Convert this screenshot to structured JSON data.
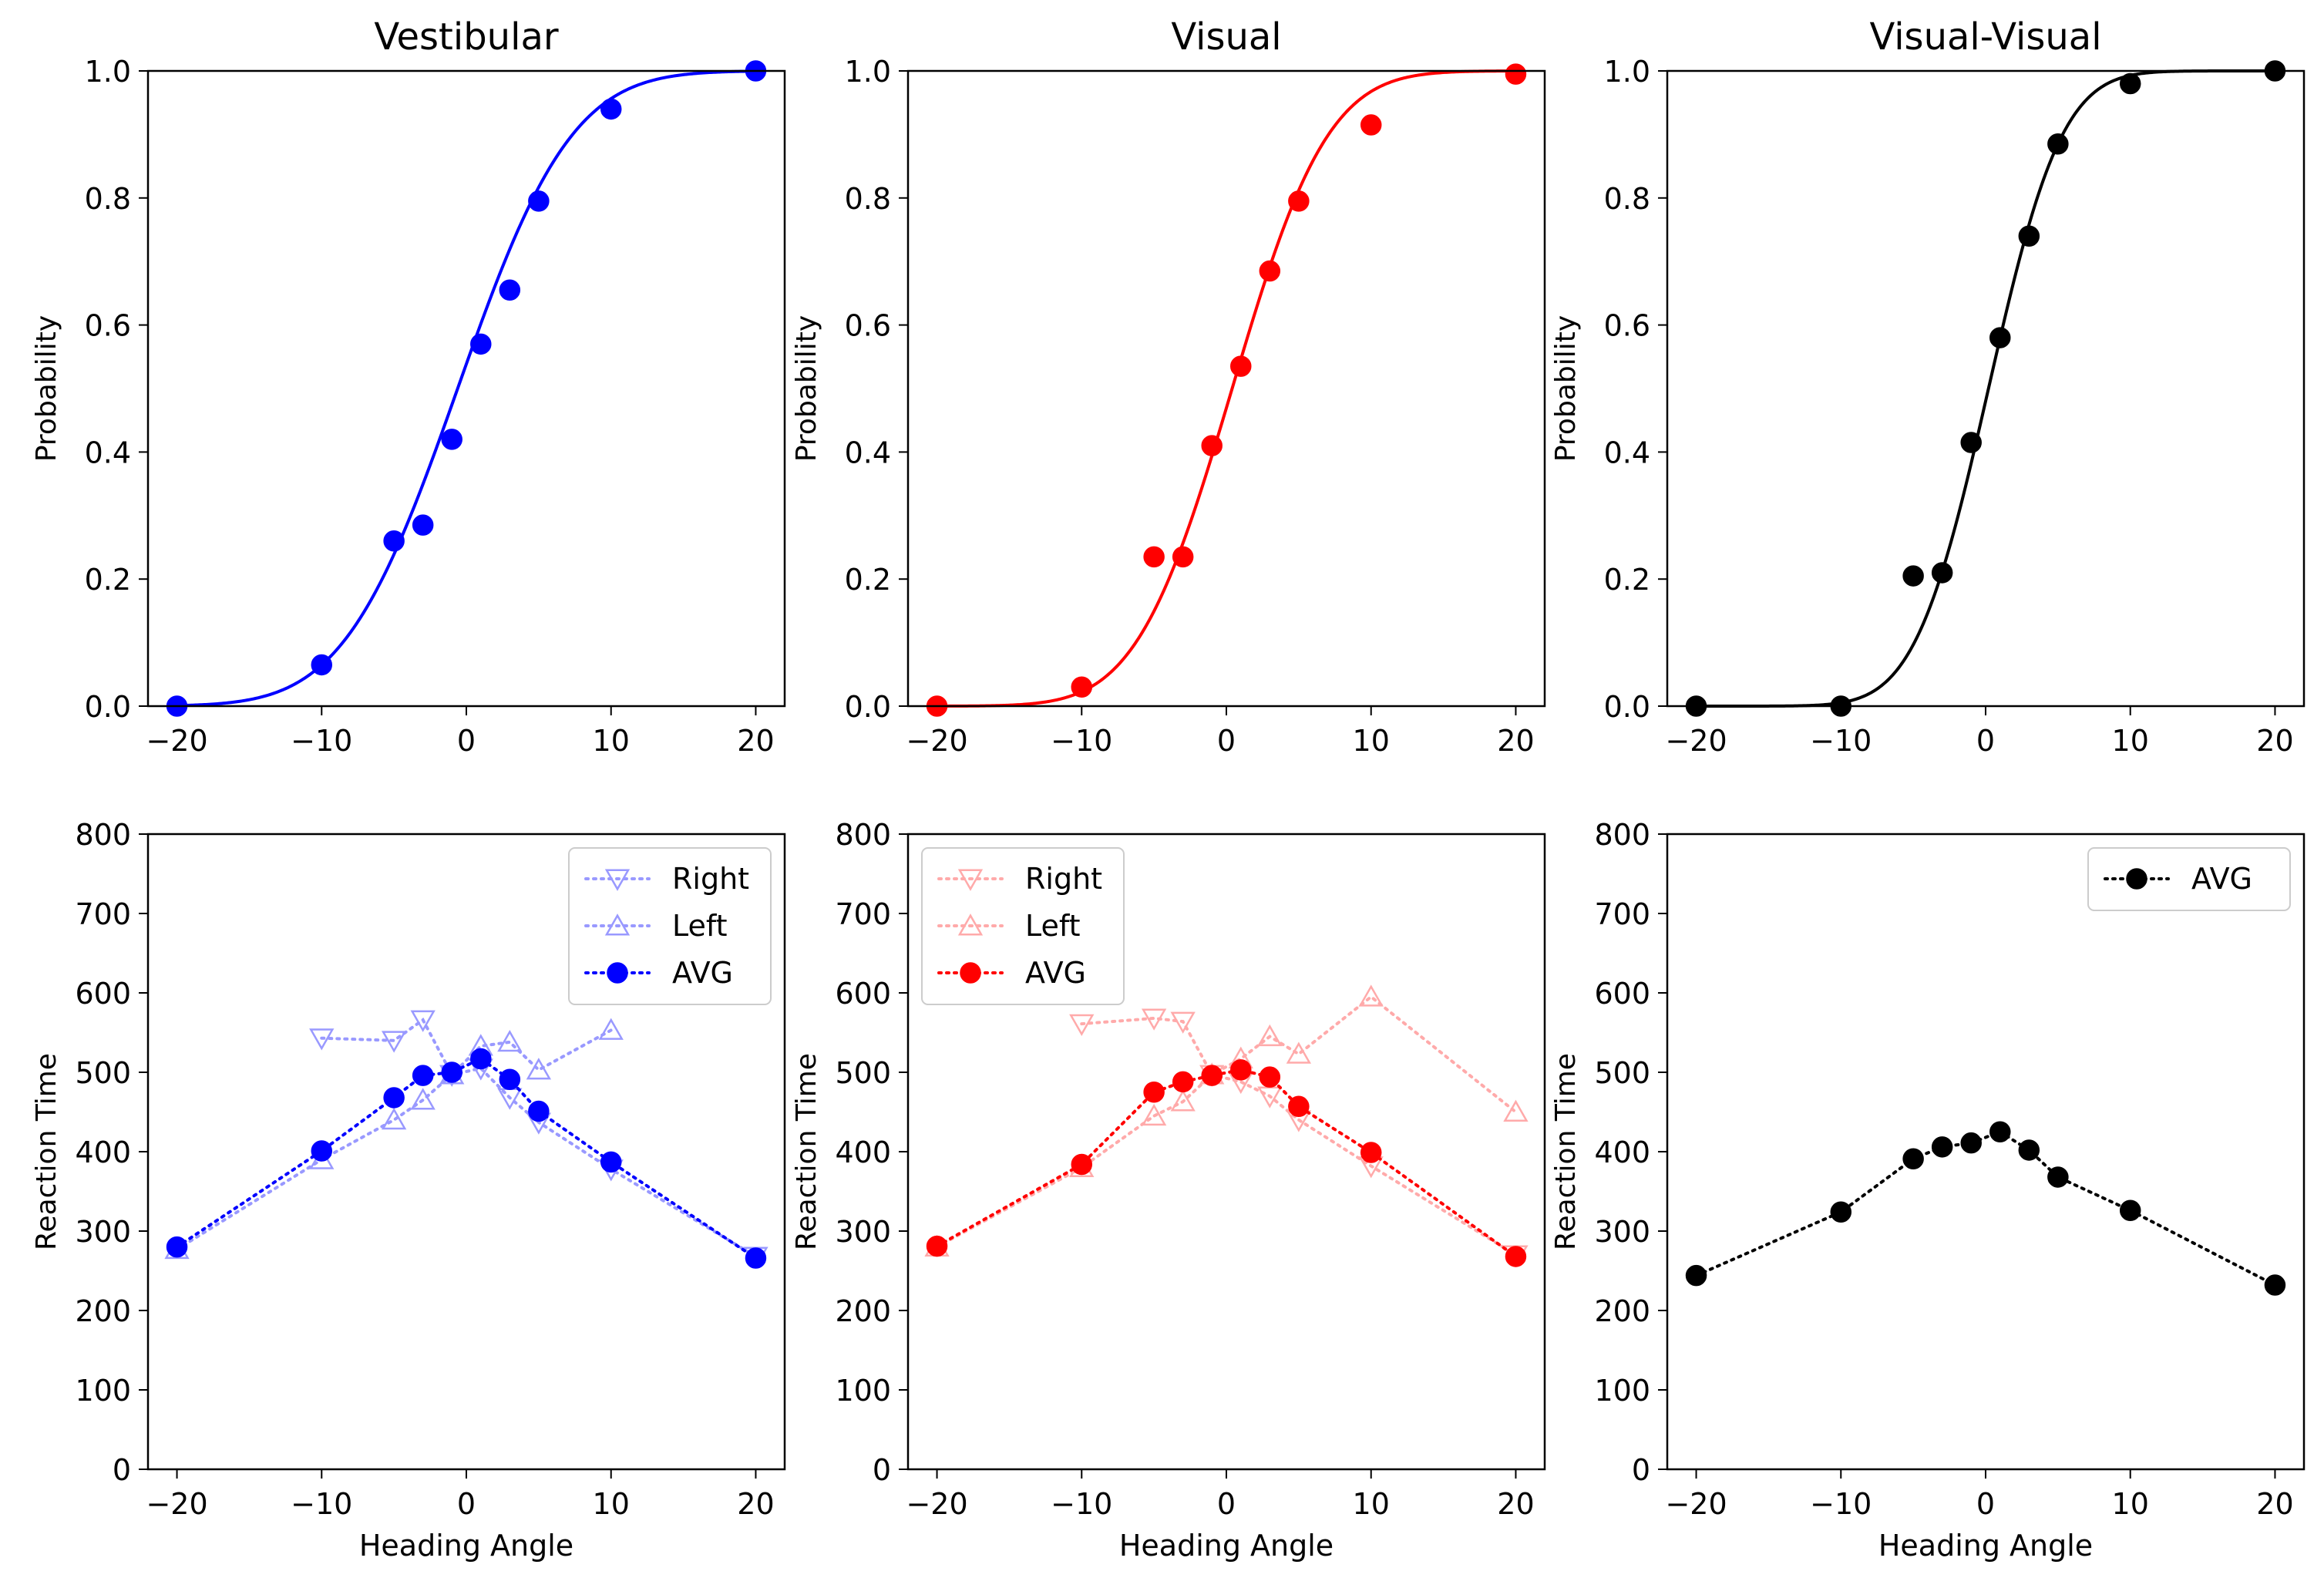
{
  "chart_data": [
    {
      "type": "scatter",
      "title": "Vestibular",
      "xlabel": "",
      "ylabel": "Probability",
      "xlim": [
        -22,
        22
      ],
      "ylim": [
        0,
        1
      ],
      "xticks": [
        -20,
        -10,
        0,
        10,
        20
      ],
      "xtick_labels": [
        "−20",
        "−10",
        "0",
        "10",
        "20"
      ],
      "yticks": [
        0,
        0.2,
        0.4,
        0.6,
        0.8,
        1.0
      ],
      "ytick_labels": [
        "0.0",
        "0.2",
        "0.4",
        "0.6",
        "0.8",
        "1.0"
      ],
      "color": "#0000ff",
      "fit": {
        "type": "cumulative-gaussian",
        "mu": -0.6,
        "sigma": 6.2
      },
      "points": {
        "x": [
          -20,
          -10,
          -5,
          -3,
          -1,
          1,
          3,
          5,
          10,
          20
        ],
        "y": [
          0.0,
          0.065,
          0.26,
          0.285,
          0.42,
          0.57,
          0.655,
          0.795,
          0.94,
          1.0
        ]
      }
    },
    {
      "type": "scatter",
      "title": "Visual",
      "xlabel": "",
      "ylabel": "Probability",
      "xlim": [
        -22,
        22
      ],
      "ylim": [
        0,
        1
      ],
      "xticks": [
        -20,
        -10,
        0,
        10,
        20
      ],
      "xtick_labels": [
        "−20",
        "−10",
        "0",
        "10",
        "20"
      ],
      "yticks": [
        0,
        0.2,
        0.4,
        0.6,
        0.8,
        1.0
      ],
      "ytick_labels": [
        "0.0",
        "0.2",
        "0.4",
        "0.6",
        "0.8",
        "1.0"
      ],
      "color": "#ff0000",
      "fit": {
        "type": "cumulative-gaussian",
        "mu": 0.4,
        "sigma": 5.2
      },
      "points": {
        "x": [
          -20,
          -10,
          -5,
          -3,
          -1,
          1,
          3,
          5,
          10,
          20
        ],
        "y": [
          0.0,
          0.03,
          0.235,
          0.235,
          0.41,
          0.535,
          0.685,
          0.795,
          0.915,
          0.995
        ]
      }
    },
    {
      "type": "scatter",
      "title": "Visual-Visual",
      "xlabel": "",
      "ylabel": "Probability",
      "xlim": [
        -22,
        22
      ],
      "ylim": [
        0,
        1
      ],
      "xticks": [
        -20,
        -10,
        0,
        10,
        20
      ],
      "xtick_labels": [
        "−20",
        "−10",
        "0",
        "10",
        "20"
      ],
      "yticks": [
        0,
        0.2,
        0.4,
        0.6,
        0.8,
        1.0
      ],
      "ytick_labels": [
        "0.0",
        "0.2",
        "0.4",
        "0.6",
        "0.8",
        "1.0"
      ],
      "color": "#000000",
      "fit": {
        "type": "cumulative-gaussian",
        "mu": 0.2,
        "sigma": 4.0
      },
      "points": {
        "x": [
          -20,
          -10,
          -5,
          -3,
          -1,
          1,
          3,
          5,
          10,
          20
        ],
        "y": [
          0.0,
          0.0,
          0.205,
          0.21,
          0.415,
          0.58,
          0.74,
          0.885,
          0.98,
          1.0
        ]
      }
    },
    {
      "type": "line",
      "title": "",
      "xlabel": "Heading Angle",
      "ylabel": "Reaction Time",
      "xlim": [
        -22,
        22
      ],
      "ylim": [
        0,
        800
      ],
      "xticks": [
        -20,
        -10,
        0,
        10,
        20
      ],
      "xtick_labels": [
        "−20",
        "−10",
        "0",
        "10",
        "20"
      ],
      "yticks": [
        0,
        100,
        200,
        300,
        400,
        500,
        600,
        700,
        800
      ],
      "ytick_labels": [
        "0",
        "100",
        "200",
        "300",
        "400",
        "500",
        "600",
        "700",
        "800"
      ],
      "legend": "top-right",
      "series": [
        {
          "name": "Right",
          "color": "#9999ff",
          "marker": "triangle-down",
          "x": [
            -10,
            -5,
            -3,
            -1,
            1,
            3,
            5,
            10,
            20
          ],
          "y": [
            543,
            540,
            566,
            497,
            505,
            468,
            437,
            378,
            268
          ]
        },
        {
          "name": "Left",
          "color": "#9999ff",
          "marker": "triangle-up",
          "x": [
            -20,
            -10,
            -5,
            -3,
            -1,
            1,
            3,
            5,
            10
          ],
          "y": [
            277,
            390,
            440,
            465,
            497,
            533,
            538,
            503,
            553
          ]
        },
        {
          "name": "AVG",
          "color": "#0000ff",
          "marker": "circle",
          "x": [
            -20,
            -10,
            -5,
            -3,
            -1,
            1,
            3,
            5,
            10,
            20
          ],
          "y": [
            280,
            401,
            468,
            496,
            500,
            517,
            491,
            451,
            387,
            266
          ]
        }
      ]
    },
    {
      "type": "line",
      "title": "",
      "xlabel": "Heading Angle",
      "ylabel": "Reaction Time",
      "xlim": [
        -22,
        22
      ],
      "ylim": [
        0,
        800
      ],
      "xticks": [
        -20,
        -10,
        0,
        10,
        20
      ],
      "xtick_labels": [
        "−20",
        "−10",
        "0",
        "10",
        "20"
      ],
      "yticks": [
        0,
        100,
        200,
        300,
        400,
        500,
        600,
        700,
        800
      ],
      "ytick_labels": [
        "0",
        "100",
        "200",
        "300",
        "400",
        "500",
        "600",
        "700",
        "800"
      ],
      "legend": "top-left",
      "series": [
        {
          "name": "Right",
          "color": "#ffaaaa",
          "marker": "triangle-down",
          "x": [
            -10,
            -5,
            -3,
            -1,
            1,
            3,
            5,
            10,
            20
          ],
          "y": [
            561,
            568,
            564,
            497,
            488,
            470,
            440,
            382,
            270
          ]
        },
        {
          "name": "Left",
          "color": "#ffaaaa",
          "marker": "triangle-up",
          "x": [
            -20,
            -10,
            -5,
            -3,
            -1,
            1,
            3,
            5,
            10,
            20
          ],
          "y": [
            280,
            380,
            445,
            463,
            497,
            517,
            545,
            523,
            595,
            450
          ]
        },
        {
          "name": "AVG",
          "color": "#ff0000",
          "marker": "circle",
          "x": [
            -20,
            -10,
            -5,
            -3,
            -1,
            1,
            3,
            5,
            10,
            20
          ],
          "y": [
            281,
            384,
            475,
            488,
            496,
            503,
            494,
            457,
            399,
            268
          ]
        }
      ]
    },
    {
      "type": "line",
      "title": "",
      "xlabel": "Heading Angle",
      "ylabel": "Reaction Time",
      "xlim": [
        -22,
        22
      ],
      "ylim": [
        0,
        800
      ],
      "xticks": [
        -20,
        -10,
        0,
        10,
        20
      ],
      "xtick_labels": [
        "−20",
        "−10",
        "0",
        "10",
        "20"
      ],
      "yticks": [
        0,
        100,
        200,
        300,
        400,
        500,
        600,
        700,
        800
      ],
      "ytick_labels": [
        "0",
        "100",
        "200",
        "300",
        "400",
        "500",
        "600",
        "700",
        "800"
      ],
      "legend": "top-right",
      "series": [
        {
          "name": "AVG",
          "color": "#000000",
          "marker": "circle",
          "x": [
            -20,
            -10,
            -5,
            -3,
            -1,
            1,
            3,
            5,
            10,
            20
          ],
          "y": [
            244,
            324,
            391,
            406,
            411,
            425,
            402,
            368,
            326,
            232
          ]
        }
      ]
    }
  ]
}
